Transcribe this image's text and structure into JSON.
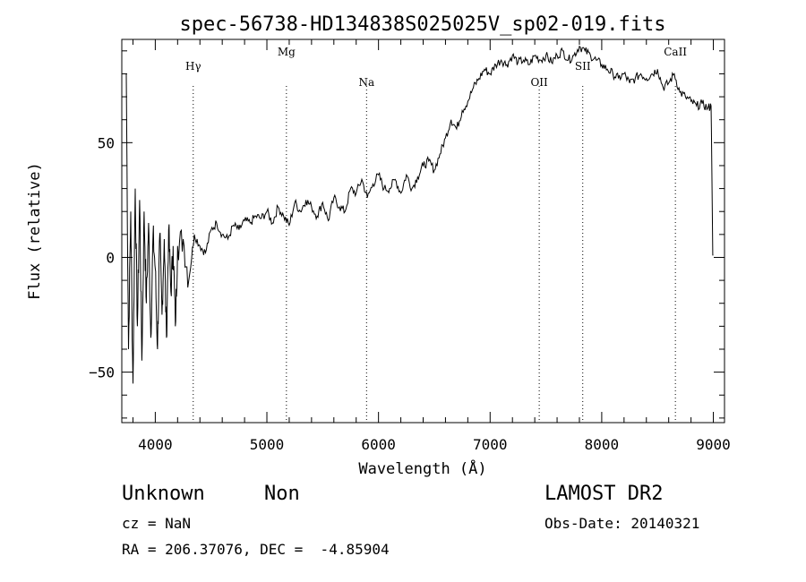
{
  "chart_data": {
    "type": "line",
    "title": "spec-56738-HD134838S025025V_sp02-019.fits",
    "xlabel": "Wavelength (Å)",
    "ylabel": "Flux (relative)",
    "xlim": [
      3700,
      9100
    ],
    "ylim": [
      -72,
      95
    ],
    "xticks": [
      4000,
      5000,
      6000,
      7000,
      8000,
      9000
    ],
    "yticks": [
      -50,
      0,
      50
    ],
    "lines": [
      {
        "label": "Hγ",
        "x": 4340
      },
      {
        "label": "Mg",
        "x": 5175
      },
      {
        "label": "Na",
        "x": 5893
      },
      {
        "label": "OII",
        "x": 7440
      },
      {
        "label": "SII",
        "x": 7830
      },
      {
        "label": "CaII",
        "x": 8660
      }
    ],
    "spectrum": {
      "x": [
        3740,
        3760,
        3780,
        3800,
        3820,
        3840,
        3860,
        3880,
        3900,
        3920,
        3940,
        3960,
        3980,
        4000,
        4020,
        4040,
        4060,
        4080,
        4100,
        4120,
        4140,
        4160,
        4180,
        4200,
        4250,
        4300,
        4350,
        4400,
        4450,
        4500,
        4550,
        4600,
        4650,
        4700,
        4750,
        4800,
        4850,
        4900,
        4950,
        5000,
        5050,
        5100,
        5150,
        5200,
        5250,
        5300,
        5350,
        5400,
        5450,
        5500,
        5550,
        5600,
        5650,
        5700,
        5750,
        5800,
        5850,
        5900,
        5950,
        6000,
        6050,
        6100,
        6150,
        6200,
        6250,
        6300,
        6350,
        6400,
        6450,
        6500,
        6550,
        6600,
        6650,
        6700,
        6750,
        6800,
        6850,
        6900,
        6950,
        7000,
        7050,
        7100,
        7150,
        7200,
        7250,
        7300,
        7350,
        7400,
        7450,
        7500,
        7550,
        7600,
        7650,
        7700,
        7750,
        7800,
        7850,
        7900,
        7950,
        8000,
        8050,
        8100,
        8150,
        8200,
        8250,
        8300,
        8350,
        8400,
        8450,
        8500,
        8550,
        8600,
        8650,
        8700,
        8750,
        8800,
        8850,
        8900,
        8950,
        8980,
        8995,
        9000
      ],
      "y": [
        80,
        -40,
        20,
        -55,
        30,
        -30,
        25,
        -45,
        20,
        -20,
        15,
        -35,
        10,
        -5,
        -40,
        10,
        -25,
        8,
        -35,
        12,
        -15,
        5,
        -30,
        5,
        8,
        -10,
        10,
        5,
        2,
        12,
        15,
        10,
        8,
        14,
        12,
        16,
        15,
        18,
        17,
        20,
        15,
        22,
        18,
        14,
        24,
        20,
        25,
        22,
        18,
        24,
        16,
        26,
        22,
        20,
        30,
        28,
        34,
        26,
        32,
        36,
        30,
        30,
        34,
        28,
        36,
        30,
        35,
        40,
        42,
        38,
        45,
        52,
        60,
        56,
        64,
        68,
        74,
        78,
        82,
        80,
        84,
        86,
        84,
        88,
        85,
        86,
        84,
        88,
        86,
        88,
        85,
        88,
        90,
        86,
        88,
        92,
        90,
        88,
        86,
        84,
        82,
        80,
        78,
        80,
        76,
        78,
        80,
        78,
        80,
        82,
        74,
        76,
        80,
        72,
        70,
        68,
        66,
        67,
        65,
        66,
        1,
        1
      ]
    }
  },
  "footer": {
    "class_name": "Unknown",
    "subclass": "Non",
    "survey": "LAMOST DR2",
    "cz": "cz = NaN",
    "obs_date": "Obs-Date: 20140321",
    "coords": "RA = 206.37076, DEC =  -4.85904"
  }
}
